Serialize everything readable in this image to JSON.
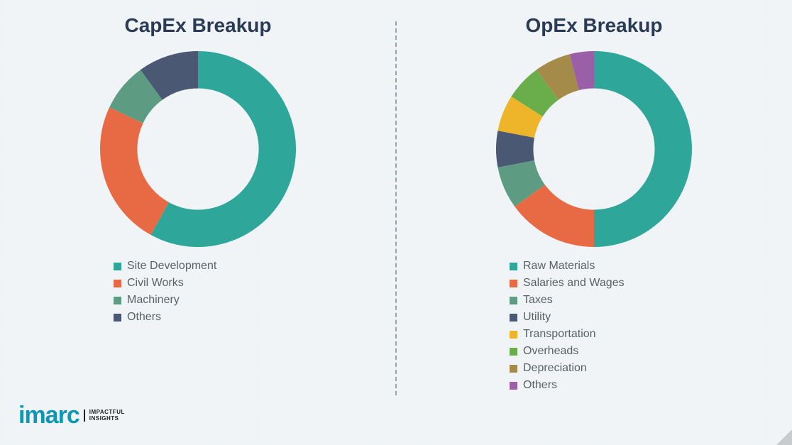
{
  "background_color": "#eef2f4",
  "divider_color": "#9aa3a8",
  "title_color": "#2a3b55",
  "title_fontsize": 28,
  "legend_fontsize": 16,
  "legend_text_color": "#5a6268",
  "logo": {
    "brand": "imarc",
    "brand_color": "#0f97b5",
    "tagline_line1": "IMPACTFUL",
    "tagline_line2": "INSIGHTS"
  },
  "capex": {
    "title": "CapEx Breakup",
    "type": "donut",
    "inner_radius_pct": 62,
    "start_angle_deg": 0,
    "segments": [
      {
        "label": "Site Development",
        "value": 58,
        "color": "#2ea79a"
      },
      {
        "label": "Civil Works",
        "value": 24,
        "color": "#e86a44"
      },
      {
        "label": "Machinery",
        "value": 8,
        "color": "#5d9c82"
      },
      {
        "label": "Others",
        "value": 10,
        "color": "#4a5873"
      }
    ]
  },
  "opex": {
    "title": "OpEx Breakup",
    "type": "donut",
    "inner_radius_pct": 62,
    "start_angle_deg": 0,
    "segments": [
      {
        "label": "Raw Materials",
        "value": 50,
        "color": "#2ea79a"
      },
      {
        "label": "Salaries and Wages",
        "value": 15,
        "color": "#e86a44"
      },
      {
        "label": "Taxes",
        "value": 7,
        "color": "#5d9c82"
      },
      {
        "label": "Utility",
        "value": 6,
        "color": "#4a5873"
      },
      {
        "label": "Transportation",
        "value": 6,
        "color": "#eeb52a"
      },
      {
        "label": "Overheads",
        "value": 6,
        "color": "#6aae4b"
      },
      {
        "label": "Depreciation",
        "value": 6,
        "color": "#a58b4a"
      },
      {
        "label": "Others",
        "value": 4,
        "color": "#9b5fa8"
      }
    ]
  }
}
